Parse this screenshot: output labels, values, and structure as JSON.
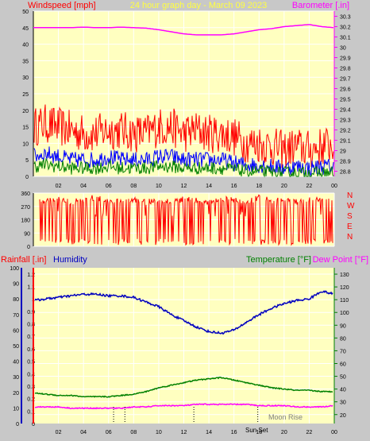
{
  "page": {
    "background": "#c8c8c8",
    "plot_background": "#ffffc0",
    "title": "24 hour graph day - March 09 2023",
    "title_color": "#ffff40",
    "sunset_label": "Sun Set",
    "moonrise_label": "Moon Rise"
  },
  "colors": {
    "wind": "#ff0000",
    "wind_avg": "#0000ff",
    "wind_low": "#008000",
    "barometer": "#ff00ff",
    "direction": "#ff0000",
    "rain_axis": "#ff0000",
    "humidity": "#0000c0",
    "temperature": "#008000",
    "dewpoint": "#ff00ff",
    "grid": "#ffffff",
    "marker": "#000000"
  },
  "chart_data": [
    {
      "type": "line",
      "panel": "wind-baro",
      "title": "24 hour graph day - March 09 2023",
      "ylabel_left": "Windspeed [mph]",
      "ylabel_right": "Barometer [.in]",
      "yticks_left": [
        "0",
        "5",
        "10",
        "15",
        "20",
        "25",
        "30",
        "35",
        "40",
        "45",
        "50"
      ],
      "yticks_right": [
        "28.8",
        "28.9",
        "29",
        "29.1",
        "29.2",
        "29.3",
        "29.4",
        "29.5",
        "29.6",
        "29.7",
        "29.8",
        "29.9",
        "30",
        "30.1",
        "30.2",
        "30.3"
      ],
      "xticks": [
        "02",
        "04",
        "06",
        "08",
        "10",
        "12",
        "14",
        "16",
        "18",
        "20",
        "22",
        "00"
      ],
      "ylim_left": [
        0,
        50
      ],
      "ylim_right": [
        28.75,
        30.35
      ],
      "grid": true,
      "series": [
        {
          "name": "Windspeed [mph]",
          "x": [
            0,
            1,
            2,
            3,
            4,
            5,
            6,
            7,
            8,
            9,
            10,
            11,
            12,
            13,
            14,
            15,
            16,
            17,
            18,
            19,
            20,
            21,
            22,
            23,
            24
          ],
          "values": [
            15,
            16,
            15,
            14,
            13,
            13,
            14,
            14,
            13,
            13,
            15,
            15,
            13,
            14,
            13,
            13,
            12,
            10,
            10,
            9,
            8,
            9,
            8,
            9,
            10
          ]
        },
        {
          "name": "Windspeed average",
          "x": [
            0,
            1,
            2,
            3,
            4,
            5,
            6,
            7,
            8,
            9,
            10,
            11,
            12,
            13,
            14,
            15,
            16,
            17,
            18,
            19,
            20,
            21,
            22,
            23,
            24
          ],
          "values": [
            6,
            7,
            6,
            5,
            5,
            5,
            6,
            5,
            5,
            5,
            6,
            6,
            5,
            5,
            5,
            5,
            4,
            3.5,
            3.5,
            3,
            2.5,
            3,
            2.5,
            3,
            3
          ]
        },
        {
          "name": "Windspeed low",
          "x": [
            0,
            1,
            2,
            3,
            4,
            5,
            6,
            7,
            8,
            9,
            10,
            11,
            12,
            13,
            14,
            15,
            16,
            17,
            18,
            19,
            20,
            21,
            22,
            23,
            24
          ],
          "values": [
            3,
            3.5,
            3,
            2.5,
            2.5,
            2.5,
            3,
            2.5,
            2.5,
            2.5,
            3,
            3,
            2.5,
            2.5,
            2.5,
            2.5,
            2,
            1.5,
            1.5,
            1,
            1,
            1,
            1,
            1,
            1
          ]
        },
        {
          "name": "Barometer [.in]",
          "x": [
            0,
            1,
            2,
            3,
            4,
            5,
            6,
            7,
            8,
            9,
            10,
            11,
            12,
            13,
            14,
            15,
            16,
            17,
            18,
            19,
            20,
            21,
            22,
            23,
            24
          ],
          "values": [
            30.19,
            30.19,
            30.19,
            30.19,
            30.195,
            30.19,
            30.19,
            30.195,
            30.19,
            30.185,
            30.17,
            30.15,
            30.13,
            30.12,
            30.12,
            30.12,
            30.13,
            30.15,
            30.17,
            30.18,
            30.2,
            30.21,
            30.22,
            30.2,
            30.19
          ]
        }
      ]
    },
    {
      "type": "scatter",
      "panel": "wind-direction",
      "yticks": [
        "0",
        "90",
        "180",
        "270",
        "360"
      ],
      "ylabels_right": [
        "N",
        "W",
        "S",
        "E",
        "N"
      ],
      "ylim": [
        0,
        360
      ],
      "grid": true,
      "series": [
        {
          "name": "Wind direction",
          "x": [
            0,
            1,
            2,
            3,
            4,
            5,
            6,
            7,
            8,
            9,
            10,
            11,
            12,
            13,
            14,
            15,
            16,
            17,
            18,
            19,
            20,
            21,
            22,
            23,
            24
          ],
          "values": [
            300,
            310,
            320,
            300,
            315,
            330,
            300,
            310,
            320,
            300,
            315,
            300,
            320,
            310,
            300,
            320,
            310,
            300,
            330,
            310,
            320,
            300,
            310,
            320,
            330
          ]
        }
      ]
    },
    {
      "type": "line",
      "panel": "humidity-temperature",
      "ylabel_left": "Rainfall [.in]",
      "ylabel_left2": "Humidity",
      "ylabel_right": "Temperature [°F]",
      "ylabel_right2": "Dew Point [°F]",
      "yticks_left_rain": [
        "0",
        "0.1",
        "0.2",
        "0.3",
        "0.4",
        "0.5",
        "0.6",
        "0.7",
        "0.8",
        "0.9",
        "1",
        "1.1",
        "1.2"
      ],
      "yticks_left_humidity": [
        "0",
        "10",
        "20",
        "30",
        "40",
        "50",
        "60",
        "70",
        "80",
        "90",
        "100"
      ],
      "yticks_right": [
        "20",
        "30",
        "40",
        "50",
        "60",
        "70",
        "80",
        "90",
        "100",
        "110",
        "120",
        "130"
      ],
      "xticks": [
        "02",
        "04",
        "06",
        "08",
        "10",
        "12",
        "14",
        "16",
        "18",
        "20",
        "22",
        "00"
      ],
      "ylim_left": [
        0,
        100
      ],
      "ylim_right": [
        13,
        135
      ],
      "grid": true,
      "series": [
        {
          "name": "Humidity",
          "x": [
            0,
            1,
            2,
            3,
            4,
            5,
            6,
            7,
            8,
            9,
            10,
            11,
            12,
            13,
            14,
            15,
            16,
            17,
            18,
            19,
            20,
            21,
            22,
            23,
            24
          ],
          "values": [
            79,
            80,
            81,
            82,
            83,
            83,
            82,
            82,
            81,
            78,
            75,
            70,
            66,
            62,
            59,
            58,
            60,
            65,
            70,
            74,
            77,
            79,
            80,
            85,
            83
          ]
        },
        {
          "name": "Temperature [°F]",
          "x": [
            0,
            1,
            2,
            3,
            4,
            5,
            6,
            7,
            8,
            9,
            10,
            11,
            12,
            13,
            14,
            15,
            16,
            17,
            18,
            19,
            20,
            21,
            22,
            23,
            24
          ],
          "values": [
            37,
            36,
            35,
            35,
            34,
            34,
            34,
            35,
            36,
            38,
            41,
            43,
            45,
            47,
            48,
            49,
            47,
            45,
            43,
            41,
            40,
            39,
            39,
            38,
            38
          ]
        },
        {
          "name": "Dew Point [°F]",
          "x": [
            0,
            1,
            2,
            3,
            4,
            5,
            6,
            7,
            8,
            9,
            10,
            11,
            12,
            13,
            14,
            15,
            16,
            17,
            18,
            19,
            20,
            21,
            22,
            23,
            24
          ],
          "values": [
            26,
            26,
            26,
            25,
            25,
            25,
            25,
            25,
            26,
            26,
            27,
            27,
            27,
            28,
            28,
            28,
            28,
            28,
            27,
            27,
            27,
            26,
            26,
            26,
            27
          ]
        }
      ]
    }
  ]
}
